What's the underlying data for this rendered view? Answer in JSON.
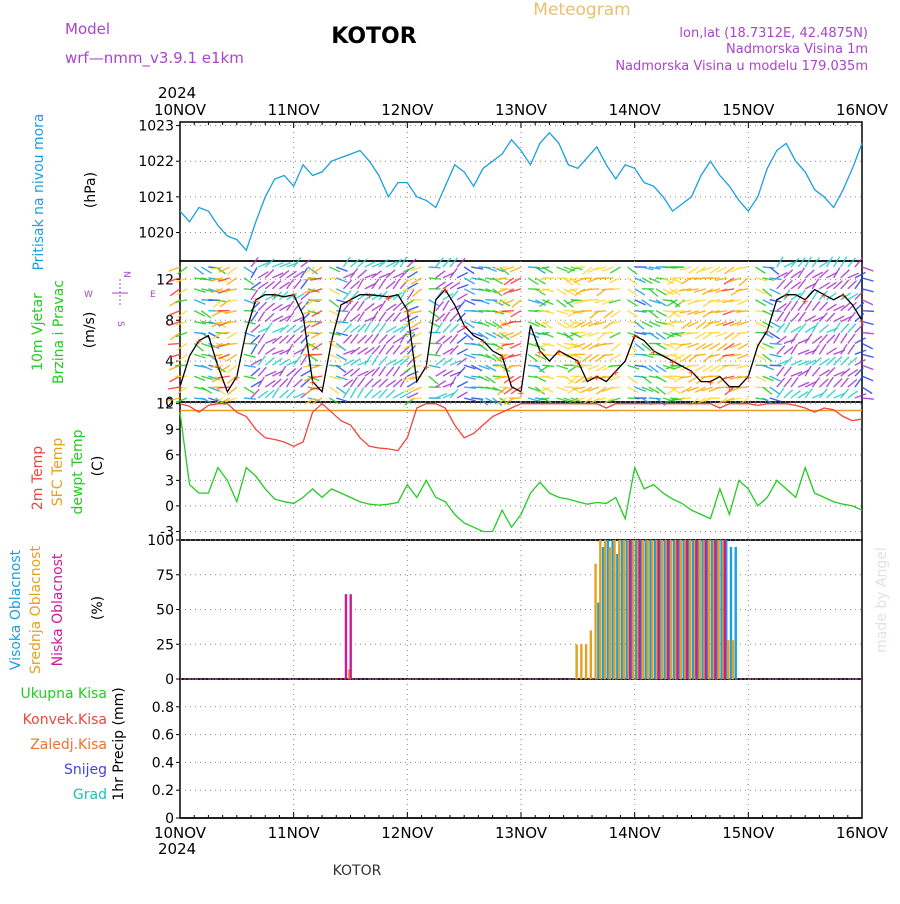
{
  "header": {
    "model_label": "Model",
    "model_name": "wrf—nmm_v3.9.1  e1km",
    "station": "KOTOR",
    "meteogram_label": "Meteogram",
    "lonlat": "lon,lat (18.7312E, 42.4875N)",
    "altitude": "Nadmorska Visina 1m",
    "model_altitude": "Nadmorska Visina u modelu 179.035m",
    "year": "2024",
    "footer_station": "KOTOR",
    "credit": "made by Angel"
  },
  "colors": {
    "pressure": "#1a9fe0",
    "temp2m": "#f0443c",
    "sfc_temp": "#e6a020",
    "dewpoint": "#22cc22",
    "high_cloud": "#1a9fe0",
    "mid_cloud": "#e6a020",
    "low_cloud": "#cc1a99",
    "wind_line": "#000000",
    "wind_gust": "#ff3300",
    "magenta_text": "#aa44cc",
    "gold_text": "#e8c070"
  },
  "x_axis": {
    "day_labels": [
      "10NOV",
      "11NOV",
      "12NOV",
      "13NOV",
      "14NOV",
      "15NOV",
      "16NOV"
    ]
  },
  "panels": {
    "pressure": {
      "labels": [
        "Pritisak na nivou mora",
        "(hPa)"
      ],
      "ticks": [
        "1020",
        "1021",
        "1022",
        "1023"
      ]
    },
    "wind": {
      "labels": [
        "10m Vjetar",
        "Brzina i Pravac",
        "(m/s)"
      ],
      "ticks": [
        "0",
        "4",
        "8",
        "12"
      ],
      "compass": [
        "N",
        "W",
        "E",
        "S"
      ]
    },
    "temp": {
      "labels": [
        "2m Temp",
        "SFC Temp",
        "dewpt Temp",
        "(C)"
      ],
      "ticks": [
        "-3",
        "0",
        "3",
        "6",
        "9",
        "12"
      ]
    },
    "cloud": {
      "labels": [
        "Visoka Oblacnost",
        "Srednja Oblacnost",
        "Niska Oblacnost",
        "(%)"
      ],
      "ticks": [
        "0",
        "25",
        "50",
        "75",
        "100"
      ]
    },
    "precip": {
      "labels": [
        "Ukupna Kisa",
        "Konvek.Kisa",
        "Zaledj.Kisa",
        "Snijeg",
        "Grad",
        "1hr Precip (mm)"
      ],
      "ticks": [
        "0",
        "0.2",
        "0.4",
        "0.6",
        "0.8"
      ]
    }
  },
  "chart_data": [
    {
      "type": "line",
      "title": "",
      "ylabel": "Pritisak na nivou mora (hPa)",
      "xlim": [
        0,
        144
      ],
      "ylim": [
        1019.2,
        1023.1
      ],
      "series": [
        {
          "name": "Pritisak na nivou mora",
          "x": [
            0,
            2,
            4,
            6,
            8,
            10,
            12,
            14,
            16,
            18,
            20,
            22,
            24,
            26,
            28,
            30,
            32,
            34,
            36,
            38,
            40,
            42,
            44,
            46,
            48,
            50,
            52,
            54,
            56,
            58,
            60,
            62,
            64,
            66,
            68,
            70,
            72,
            74,
            76,
            78,
            80,
            82,
            84,
            86,
            88,
            90,
            92,
            94,
            96,
            98,
            100,
            102,
            104,
            106,
            108,
            110,
            112,
            114,
            116,
            118,
            120,
            122,
            124,
            126,
            128,
            130,
            132,
            134,
            136,
            138,
            140,
            142,
            144
          ],
          "y": [
            1020.6,
            1020.3,
            1020.7,
            1020.6,
            1020.2,
            1019.9,
            1019.8,
            1019.5,
            1020.3,
            1021.0,
            1021.5,
            1021.6,
            1021.3,
            1021.9,
            1021.6,
            1021.7,
            1022.0,
            1022.1,
            1022.2,
            1022.3,
            1022.0,
            1021.6,
            1021.0,
            1021.4,
            1021.4,
            1021.0,
            1020.9,
            1020.7,
            1021.3,
            1021.9,
            1021.7,
            1021.3,
            1021.8,
            1022.0,
            1022.2,
            1022.6,
            1022.3,
            1021.9,
            1022.5,
            1022.8,
            1022.5,
            1021.9,
            1021.8,
            1022.1,
            1022.4,
            1021.9,
            1021.5,
            1021.9,
            1021.8,
            1021.4,
            1021.3,
            1021.0,
            1020.6,
            1020.8,
            1021.0,
            1021.6,
            1022.0,
            1021.6,
            1021.3,
            1020.9,
            1020.6,
            1021.0,
            1021.8,
            1022.3,
            1022.5,
            1022.0,
            1021.7,
            1021.2,
            1021.0,
            1020.7,
            1021.2,
            1021.8,
            1022.5
          ]
        }
      ]
    },
    {
      "type": "line",
      "title": "",
      "ylabel": "10m Vjetar Brzina i Pravac (m/s)",
      "xlim": [
        0,
        144
      ],
      "ylim": [
        0,
        13.8
      ],
      "series": [
        {
          "name": "",
          "x": [
            0,
            2,
            4,
            6,
            8,
            10,
            12,
            14,
            16,
            18,
            20,
            22,
            24,
            26,
            28,
            30,
            32,
            34,
            36,
            38,
            40,
            42,
            44,
            46,
            48,
            50,
            52,
            54,
            56,
            58,
            60,
            62,
            64,
            66,
            68,
            70,
            72,
            74,
            76,
            78,
            80,
            82,
            84,
            86,
            88,
            90,
            92,
            94,
            96,
            98,
            100,
            102,
            104,
            106,
            108,
            110,
            112,
            114,
            116,
            118,
            120,
            122,
            124,
            126,
            128,
            130,
            132,
            134,
            136,
            138,
            140,
            142,
            144
          ],
          "y": [
            1.5,
            4.5,
            6.0,
            6.5,
            3.5,
            1.0,
            2.5,
            7.0,
            10.0,
            10.5,
            10.5,
            10.3,
            10.5,
            8.5,
            2.0,
            1.0,
            6.0,
            9.5,
            10.0,
            10.5,
            10.5,
            10.4,
            10.3,
            10.5,
            9.0,
            2.0,
            3.5,
            10.0,
            11.0,
            9.5,
            7.5,
            6.5,
            6.0,
            5.0,
            4.5,
            1.5,
            1.0,
            7.5,
            5.0,
            4.0,
            5.0,
            4.5,
            4.0,
            2.0,
            2.5,
            2.0,
            3.0,
            4.0,
            6.5,
            6.0,
            5.0,
            4.5,
            4.0,
            3.5,
            3.0,
            2.0,
            2.0,
            2.5,
            1.5,
            1.5,
            2.5,
            5.5,
            7.0,
            10.0,
            10.5,
            10.5,
            10.0,
            11.0,
            10.5,
            10.0,
            10.5,
            9.5,
            8.0
          ]
        }
      ]
    },
    {
      "type": "line",
      "title": "",
      "ylabel": "Temp (C)",
      "xlim": [
        0,
        144
      ],
      "ylim": [
        -4,
        12.2
      ],
      "series": [
        {
          "name": "2m Temp",
          "x": [
            0,
            2,
            4,
            6,
            8,
            10,
            12,
            14,
            16,
            18,
            20,
            22,
            24,
            26,
            28,
            30,
            32,
            34,
            36,
            38,
            40,
            42,
            44,
            46,
            48,
            50,
            52,
            54,
            56,
            58,
            60,
            62,
            64,
            66,
            68,
            70,
            72,
            74,
            76,
            78,
            80,
            82,
            84,
            86,
            88,
            90,
            92,
            94,
            96,
            98,
            100,
            102,
            104,
            106,
            108,
            110,
            112,
            114,
            116,
            118,
            120,
            122,
            124,
            126,
            128,
            130,
            132,
            134,
            136,
            138,
            140,
            142,
            144
          ],
          "y": [
            12.0,
            11.7,
            11.0,
            11.8,
            12.0,
            12.0,
            11.0,
            10.5,
            9.0,
            8.0,
            7.8,
            7.5,
            7.0,
            7.5,
            11.0,
            12.0,
            11.0,
            10.0,
            9.5,
            8.0,
            7.0,
            6.8,
            6.7,
            6.5,
            8.0,
            11.5,
            12.0,
            12.0,
            11.5,
            9.5,
            8.0,
            8.5,
            9.5,
            10.5,
            11.0,
            11.5,
            12.0,
            12.0,
            12.0,
            12.0,
            12.0,
            12.0,
            12.0,
            12.0,
            12.0,
            11.5,
            12.0,
            12.0,
            12.0,
            12.0,
            12.0,
            12.0,
            12.0,
            12.0,
            12.0,
            12.0,
            12.0,
            11.5,
            12.0,
            12.0,
            12.0,
            11.8,
            12.0,
            12.0,
            12.0,
            11.8,
            11.5,
            11.0,
            11.5,
            11.3,
            10.5,
            10.0,
            10.2
          ]
        },
        {
          "name": "SFC Temp",
          "x": [
            0,
            144
          ],
          "y": [
            11.2,
            11.2
          ]
        },
        {
          "name": "dewpt Temp",
          "x": [
            0,
            2,
            4,
            6,
            8,
            10,
            12,
            14,
            16,
            18,
            20,
            22,
            24,
            26,
            28,
            30,
            32,
            34,
            36,
            38,
            40,
            42,
            44,
            46,
            48,
            50,
            52,
            54,
            56,
            58,
            60,
            62,
            64,
            66,
            68,
            70,
            72,
            74,
            76,
            78,
            80,
            82,
            84,
            86,
            88,
            90,
            92,
            94,
            96,
            98,
            100,
            102,
            104,
            106,
            108,
            110,
            112,
            114,
            116,
            118,
            120,
            122,
            124,
            126,
            128,
            130,
            132,
            134,
            136,
            138,
            140,
            142,
            144
          ],
          "y": [
            11.0,
            2.5,
            1.5,
            1.5,
            4.5,
            3.0,
            0.5,
            4.5,
            3.5,
            2.0,
            0.8,
            0.5,
            0.3,
            1.0,
            2.0,
            1.0,
            2.0,
            1.5,
            1.0,
            0.5,
            0.2,
            0.1,
            0.2,
            0.4,
            2.5,
            1.0,
            3.0,
            1.0,
            0.5,
            -1.0,
            -2.0,
            -2.5,
            -3.0,
            -3.0,
            -0.5,
            -2.5,
            -1.0,
            1.5,
            2.8,
            1.5,
            1.0,
            0.8,
            0.5,
            0.2,
            0.4,
            0.3,
            1.0,
            -1.5,
            4.5,
            2.0,
            2.5,
            1.5,
            0.8,
            0.3,
            -0.5,
            -1.0,
            -1.5,
            2.0,
            -1.0,
            3.0,
            2.0,
            0.0,
            1.0,
            3.0,
            2.0,
            1.0,
            4.5,
            1.5,
            1.0,
            0.5,
            0.2,
            0.0,
            -0.5
          ]
        }
      ]
    },
    {
      "type": "bar",
      "title": "",
      "ylabel": "Oblacnost (%)",
      "xlim": [
        0,
        144
      ],
      "ylim": [
        0,
        100
      ],
      "series": [
        {
          "name": "Visoka Oblacnost",
          "x": [
            88,
            89,
            90,
            91,
            92,
            93,
            94,
            95,
            96,
            97,
            98,
            99,
            100,
            101,
            102,
            103,
            104,
            105,
            106,
            107,
            108,
            109,
            110,
            111,
            112,
            113,
            114,
            115,
            116,
            117
          ],
          "y": [
            55,
            95,
            100,
            100,
            90,
            100,
            100,
            100,
            100,
            100,
            100,
            100,
            100,
            100,
            100,
            100,
            100,
            100,
            100,
            100,
            100,
            100,
            100,
            100,
            100,
            100,
            100,
            100,
            95,
            95
          ]
        },
        {
          "name": "Srednja Oblacnost",
          "x": [
            36,
            84,
            85,
            86,
            87,
            88,
            89,
            90,
            91,
            92,
            93,
            94,
            95,
            96,
            97,
            98,
            99,
            100,
            101,
            102,
            103,
            104,
            105,
            106,
            107,
            108,
            109,
            110,
            111,
            112,
            113,
            114,
            115,
            116,
            117
          ],
          "y": [
            7,
            25,
            25,
            25,
            35,
            83,
            100,
            100,
            95,
            100,
            100,
            100,
            100,
            100,
            100,
            100,
            100,
            100,
            100,
            100,
            100,
            100,
            100,
            100,
            100,
            100,
            100,
            100,
            100,
            100,
            100,
            100,
            100,
            28,
            28
          ]
        },
        {
          "name": "Niska Oblacnost",
          "x": [
            35,
            36,
            95,
            97,
            101,
            103,
            105,
            107,
            109,
            111,
            113,
            115
          ],
          "y": [
            61,
            61,
            100,
            100,
            100,
            100,
            100,
            100,
            100,
            100,
            100,
            100
          ]
        }
      ]
    },
    {
      "type": "bar",
      "title": "",
      "ylabel": "1hr Precip (mm)",
      "xlim": [
        0,
        144
      ],
      "ylim": [
        0,
        1
      ],
      "series": [
        {
          "name": "Ukupna Kisa",
          "x": [],
          "y": []
        },
        {
          "name": "Konvek.Kisa",
          "x": [],
          "y": []
        },
        {
          "name": "Zaledj.Kisa",
          "x": [],
          "y": []
        },
        {
          "name": "Snijeg",
          "x": [],
          "y": []
        },
        {
          "name": "Grad",
          "x": [],
          "y": []
        }
      ]
    }
  ]
}
